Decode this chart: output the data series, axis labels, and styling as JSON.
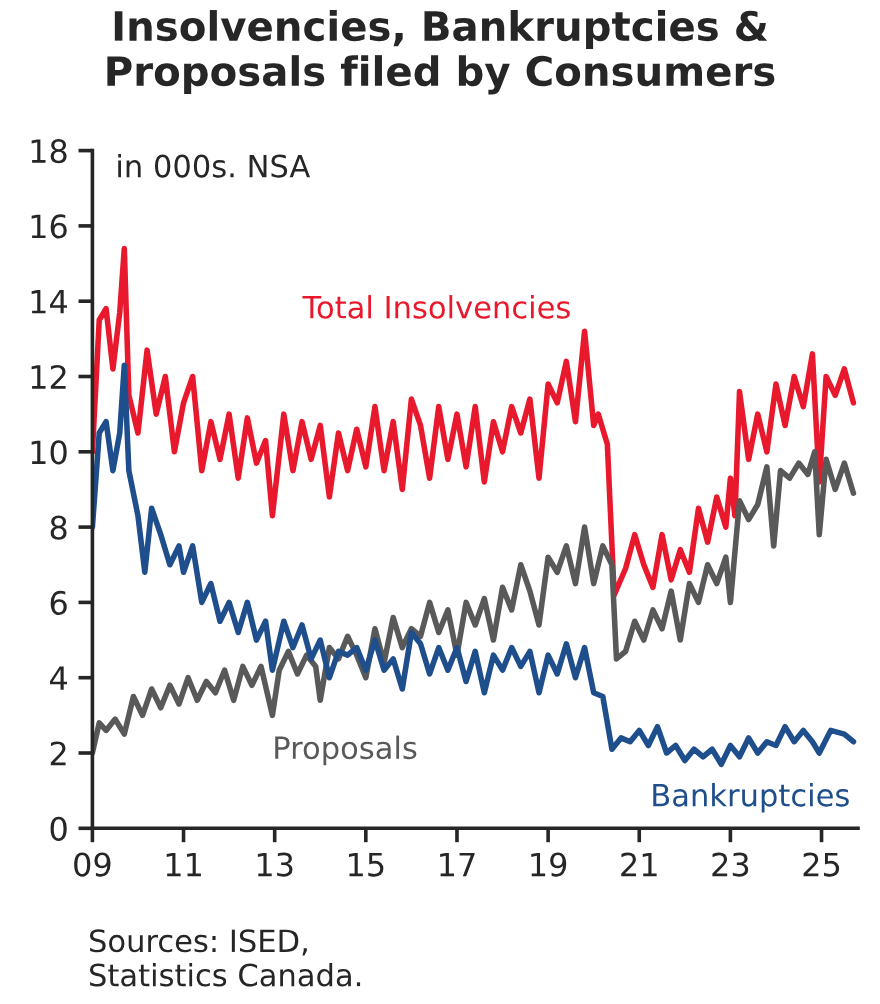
{
  "chart_data": {
    "type": "line",
    "title": "Insolvencies, Bankruptcies &\nProposals filed by Consumers",
    "ylabel": "in 000s. NSA",
    "annotations": [
      "Sources: ISED,\nStatistics Canada."
    ],
    "xlim": [
      2009,
      2025.8
    ],
    "xticks": [
      {
        "value": 2009,
        "label": "09"
      },
      {
        "value": 2011,
        "label": "11"
      },
      {
        "value": 2013,
        "label": "13"
      },
      {
        "value": 2015,
        "label": "15"
      },
      {
        "value": 2017,
        "label": "17"
      },
      {
        "value": 2019,
        "label": "19"
      },
      {
        "value": 2021,
        "label": "21"
      },
      {
        "value": 2023,
        "label": "23"
      },
      {
        "value": 2025,
        "label": "25"
      }
    ],
    "ylim": [
      0,
      18
    ],
    "yticks": [
      0,
      2,
      4,
      6,
      8,
      10,
      12,
      14,
      16,
      18
    ],
    "grid": false,
    "legend": false,
    "line_style": "solid",
    "marker": "none",
    "series": [
      {
        "name": "Total Insolvencies",
        "color": "#e8192c",
        "x": [
          2009.0,
          2009.15,
          2009.3,
          2009.45,
          2009.6,
          2009.7,
          2009.8,
          2010.0,
          2010.2,
          2010.4,
          2010.6,
          2010.8,
          2011.0,
          2011.2,
          2011.4,
          2011.6,
          2011.8,
          2012.0,
          2012.2,
          2012.4,
          2012.6,
          2012.8,
          2012.95,
          2013.2,
          2013.4,
          2013.6,
          2013.8,
          2014.0,
          2014.2,
          2014.4,
          2014.6,
          2014.8,
          2015.0,
          2015.2,
          2015.4,
          2015.6,
          2015.8,
          2016.0,
          2016.2,
          2016.4,
          2016.6,
          2016.8,
          2017.0,
          2017.2,
          2017.4,
          2017.6,
          2017.8,
          2018.0,
          2018.2,
          2018.4,
          2018.6,
          2018.8,
          2019.0,
          2019.2,
          2019.4,
          2019.6,
          2019.8,
          2020.0,
          2020.1,
          2020.3,
          2020.45,
          2020.7,
          2020.9,
          2021.1,
          2021.3,
          2021.5,
          2021.7,
          2021.9,
          2022.1,
          2022.3,
          2022.5,
          2022.7,
          2022.9,
          2023.0,
          2023.1,
          2023.2,
          2023.4,
          2023.6,
          2023.8,
          2024.0,
          2024.2,
          2024.4,
          2024.6,
          2024.8,
          2024.95,
          2025.1,
          2025.3,
          2025.5,
          2025.7
        ],
        "values": [
          10.0,
          13.5,
          13.8,
          12.2,
          13.7,
          15.4,
          11.5,
          10.5,
          12.7,
          11.0,
          12.0,
          10.0,
          11.3,
          12.0,
          9.5,
          10.8,
          9.8,
          11.0,
          9.3,
          10.9,
          9.7,
          10.3,
          8.3,
          11.0,
          9.5,
          10.8,
          9.8,
          10.7,
          8.8,
          10.5,
          9.5,
          10.6,
          9.6,
          11.2,
          9.5,
          10.8,
          9.0,
          11.4,
          10.7,
          9.3,
          11.2,
          9.8,
          11.0,
          9.6,
          11.2,
          9.2,
          10.8,
          10.0,
          11.2,
          10.5,
          11.4,
          9.3,
          11.8,
          11.3,
          12.4,
          10.8,
          13.2,
          10.7,
          11.0,
          10.2,
          6.2,
          6.9,
          7.8,
          7.0,
          6.4,
          7.8,
          6.6,
          7.4,
          6.8,
          8.5,
          7.6,
          8.8,
          8.0,
          9.3,
          8.3,
          11.6,
          9.8,
          11.0,
          10.0,
          11.8,
          10.7,
          12.0,
          11.2,
          12.6,
          9.2,
          12.0,
          11.5,
          12.2,
          11.3
        ]
      },
      {
        "name": "Proposals",
        "color": "#595959",
        "x": [
          2009.0,
          2009.15,
          2009.3,
          2009.5,
          2009.7,
          2009.9,
          2010.1,
          2010.3,
          2010.5,
          2010.7,
          2010.9,
          2011.1,
          2011.3,
          2011.5,
          2011.7,
          2011.9,
          2012.1,
          2012.3,
          2012.5,
          2012.7,
          2012.95,
          2013.1,
          2013.3,
          2013.5,
          2013.7,
          2013.9,
          2014.0,
          2014.2,
          2014.4,
          2014.6,
          2014.8,
          2015.0,
          2015.2,
          2015.4,
          2015.6,
          2015.8,
          2016.0,
          2016.2,
          2016.4,
          2016.6,
          2016.8,
          2017.0,
          2017.2,
          2017.4,
          2017.6,
          2017.8,
          2018.0,
          2018.2,
          2018.4,
          2018.6,
          2018.8,
          2019.0,
          2019.2,
          2019.4,
          2019.6,
          2019.8,
          2020.0,
          2020.2,
          2020.4,
          2020.5,
          2020.7,
          2020.9,
          2021.1,
          2021.3,
          2021.5,
          2021.7,
          2021.9,
          2022.1,
          2022.3,
          2022.5,
          2022.7,
          2022.9,
          2023.0,
          2023.2,
          2023.4,
          2023.6,
          2023.8,
          2023.95,
          2024.1,
          2024.3,
          2024.5,
          2024.7,
          2024.85,
          2024.95,
          2025.1,
          2025.3,
          2025.5,
          2025.7
        ],
        "values": [
          2.0,
          2.8,
          2.6,
          2.9,
          2.5,
          3.5,
          3.0,
          3.7,
          3.2,
          3.8,
          3.3,
          4.0,
          3.4,
          3.9,
          3.6,
          4.2,
          3.4,
          4.3,
          3.8,
          4.3,
          3.0,
          4.2,
          4.7,
          4.1,
          4.6,
          4.3,
          3.4,
          4.8,
          4.5,
          5.1,
          4.6,
          4.0,
          5.3,
          4.4,
          5.6,
          4.8,
          5.3,
          5.1,
          6.0,
          5.2,
          5.8,
          4.6,
          6.0,
          5.4,
          6.1,
          5.0,
          6.4,
          5.8,
          7.0,
          6.3,
          5.4,
          7.2,
          6.8,
          7.5,
          6.5,
          8.0,
          6.5,
          7.5,
          7.0,
          4.5,
          4.7,
          5.5,
          5.0,
          5.8,
          5.3,
          6.3,
          5.0,
          6.5,
          6.0,
          7.0,
          6.5,
          7.2,
          6.0,
          8.7,
          8.2,
          8.6,
          9.6,
          7.5,
          9.5,
          9.3,
          9.7,
          9.4,
          10.0,
          7.8,
          9.8,
          9.0,
          9.7,
          8.9
        ]
      },
      {
        "name": "Bankruptcies",
        "color": "#1f4e8c",
        "x": [
          2009.0,
          2009.15,
          2009.3,
          2009.45,
          2009.6,
          2009.7,
          2009.8,
          2010.0,
          2010.15,
          2010.3,
          2010.5,
          2010.7,
          2010.9,
          2011.0,
          2011.2,
          2011.4,
          2011.6,
          2011.8,
          2012.0,
          2012.2,
          2012.4,
          2012.6,
          2012.8,
          2012.95,
          2013.2,
          2013.4,
          2013.6,
          2013.8,
          2014.0,
          2014.2,
          2014.4,
          2014.6,
          2014.8,
          2015.0,
          2015.2,
          2015.4,
          2015.6,
          2015.8,
          2016.0,
          2016.2,
          2016.4,
          2016.6,
          2016.8,
          2017.0,
          2017.2,
          2017.4,
          2017.6,
          2017.8,
          2018.0,
          2018.2,
          2018.4,
          2018.6,
          2018.8,
          2019.0,
          2019.2,
          2019.4,
          2019.6,
          2019.8,
          2020.0,
          2020.2,
          2020.4,
          2020.6,
          2020.8,
          2021.0,
          2021.2,
          2021.4,
          2021.6,
          2021.8,
          2022.0,
          2022.2,
          2022.4,
          2022.6,
          2022.8,
          2023.0,
          2023.2,
          2023.4,
          2023.6,
          2023.8,
          2024.0,
          2024.2,
          2024.4,
          2024.6,
          2024.8,
          2024.95,
          2025.2,
          2025.5,
          2025.7
        ],
        "values": [
          8.0,
          10.5,
          10.8,
          9.5,
          10.5,
          12.3,
          9.5,
          8.3,
          6.8,
          8.5,
          7.8,
          7.0,
          7.5,
          6.8,
          7.5,
          6.0,
          6.5,
          5.5,
          6.0,
          5.2,
          6.0,
          5.0,
          5.5,
          4.2,
          5.5,
          4.8,
          5.4,
          4.5,
          5.0,
          4.0,
          4.7,
          4.6,
          4.8,
          4.2,
          5.0,
          4.2,
          4.5,
          3.7,
          5.2,
          4.9,
          4.1,
          4.8,
          4.2,
          4.8,
          3.9,
          4.7,
          3.6,
          4.6,
          4.2,
          4.8,
          4.3,
          4.7,
          3.6,
          4.6,
          4.1,
          4.9,
          4.0,
          4.8,
          3.6,
          3.5,
          2.1,
          2.4,
          2.3,
          2.6,
          2.2,
          2.7,
          2.0,
          2.2,
          1.8,
          2.1,
          1.9,
          2.1,
          1.7,
          2.2,
          1.9,
          2.4,
          2.0,
          2.3,
          2.2,
          2.7,
          2.3,
          2.6,
          2.3,
          2.0,
          2.6,
          2.5,
          2.3
        ]
      }
    ]
  }
}
